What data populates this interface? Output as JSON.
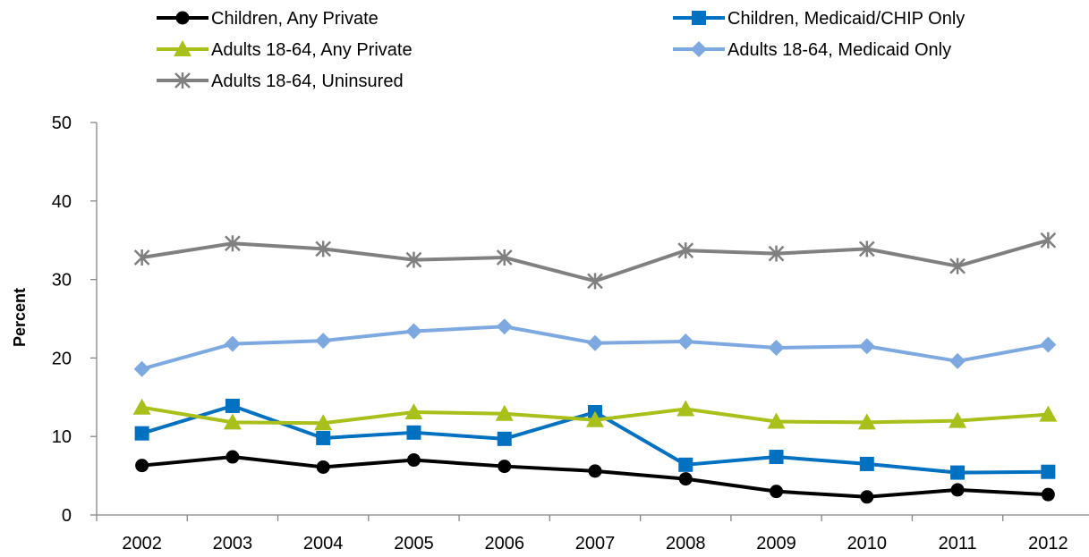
{
  "chart_data": {
    "type": "line",
    "title": "",
    "xlabel": "",
    "ylabel": "Percent",
    "ylim": [
      0,
      50
    ],
    "yticks": [
      "0",
      "10",
      "20",
      "30",
      "40",
      "50"
    ],
    "grid": false,
    "legend_position": "top",
    "categories": [
      "2002",
      "2003",
      "2004",
      "2005",
      "2006",
      "2007",
      "2008",
      "2009",
      "2010",
      "2011",
      "2012"
    ],
    "series": [
      {
        "name": "Children, Any Private",
        "color": "#000000",
        "marker": "circle",
        "values": [
          6.3,
          7.4,
          6.1,
          7.0,
          6.2,
          5.6,
          4.6,
          3.0,
          2.3,
          3.2,
          2.6
        ]
      },
      {
        "name": "Children, Medicaid/CHIP Only",
        "color": "#0070C0",
        "marker": "square",
        "values": [
          10.4,
          13.9,
          9.8,
          10.5,
          9.7,
          13.1,
          6.4,
          7.4,
          6.5,
          5.4,
          5.5
        ]
      },
      {
        "name": "Adults 18-64, Any Private",
        "color": "#A9BF1A",
        "marker": "triangle",
        "values": [
          13.7,
          11.8,
          11.7,
          13.1,
          12.9,
          12.1,
          13.5,
          11.9,
          11.8,
          12.0,
          12.8
        ]
      },
      {
        "name": "Adults 18-64, Medicaid Only",
        "color": "#7EA9E0",
        "marker": "diamond",
        "values": [
          18.6,
          21.8,
          22.2,
          23.4,
          24.0,
          21.9,
          22.1,
          21.3,
          21.5,
          19.6,
          21.7
        ]
      },
      {
        "name": "Adults 18-64, Uninsured",
        "color": "#808080",
        "marker": "star",
        "values": [
          32.8,
          34.6,
          33.9,
          32.5,
          32.8,
          29.8,
          33.7,
          33.3,
          33.9,
          31.7,
          35.0
        ]
      }
    ]
  }
}
